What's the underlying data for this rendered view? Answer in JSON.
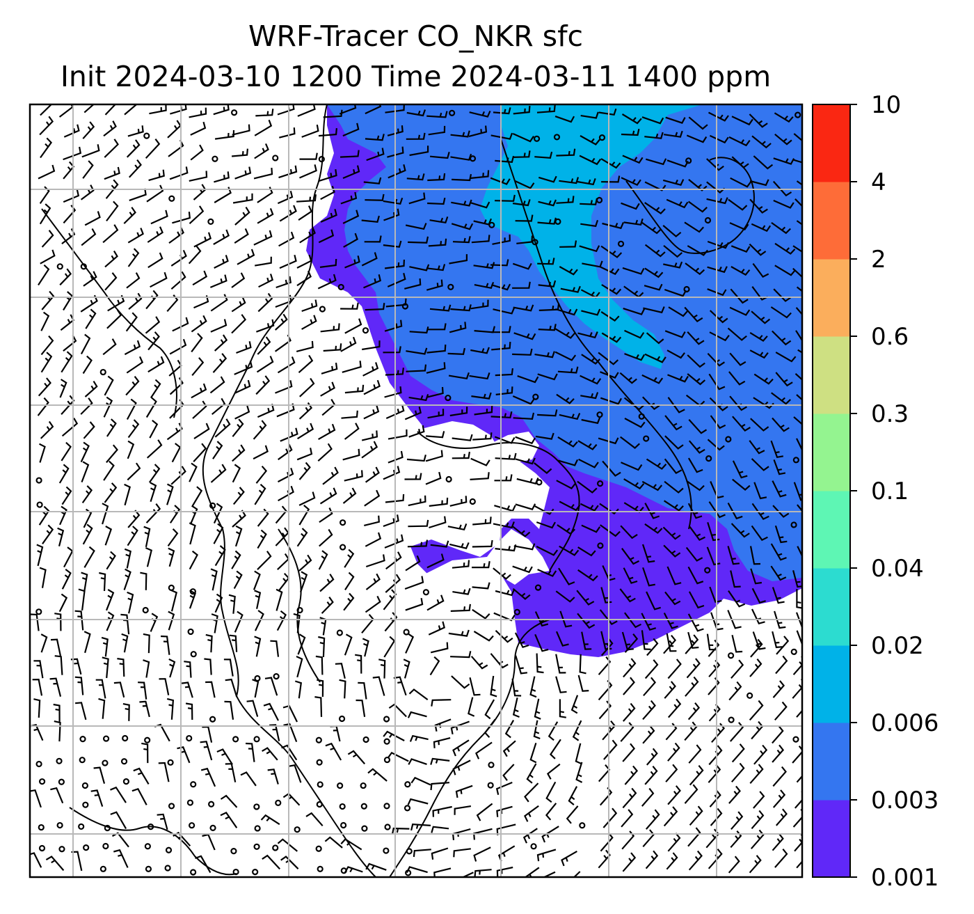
{
  "title": {
    "line1": "WRF-Tracer CO_NKR sfc",
    "line2": "Init 2024-03-10 1200 Time 2024-03-11 1400 ppm"
  },
  "colorbar": {
    "levels": [
      "0.001",
      "0.003",
      "0.006",
      "0.02",
      "0.04",
      "0.1",
      "0.3",
      "0.6",
      "2",
      "4",
      "10"
    ],
    "colors": [
      "#6028f8",
      "#3476f0",
      "#00b2e8",
      "#2cdcd0",
      "#5ef6b4",
      "#94f490",
      "#cee082",
      "#fbae5c",
      "#fe6c38",
      "#fa2712"
    ]
  },
  "map": {
    "field": "CO_NKR surface tracer concentration with wind barbs",
    "grid": "lat/lon gridlines",
    "plume_colors": {
      "level_0_001": "#6028f8",
      "level_0_003": "#3476f0",
      "level_0_006": "#00b2e8"
    }
  }
}
